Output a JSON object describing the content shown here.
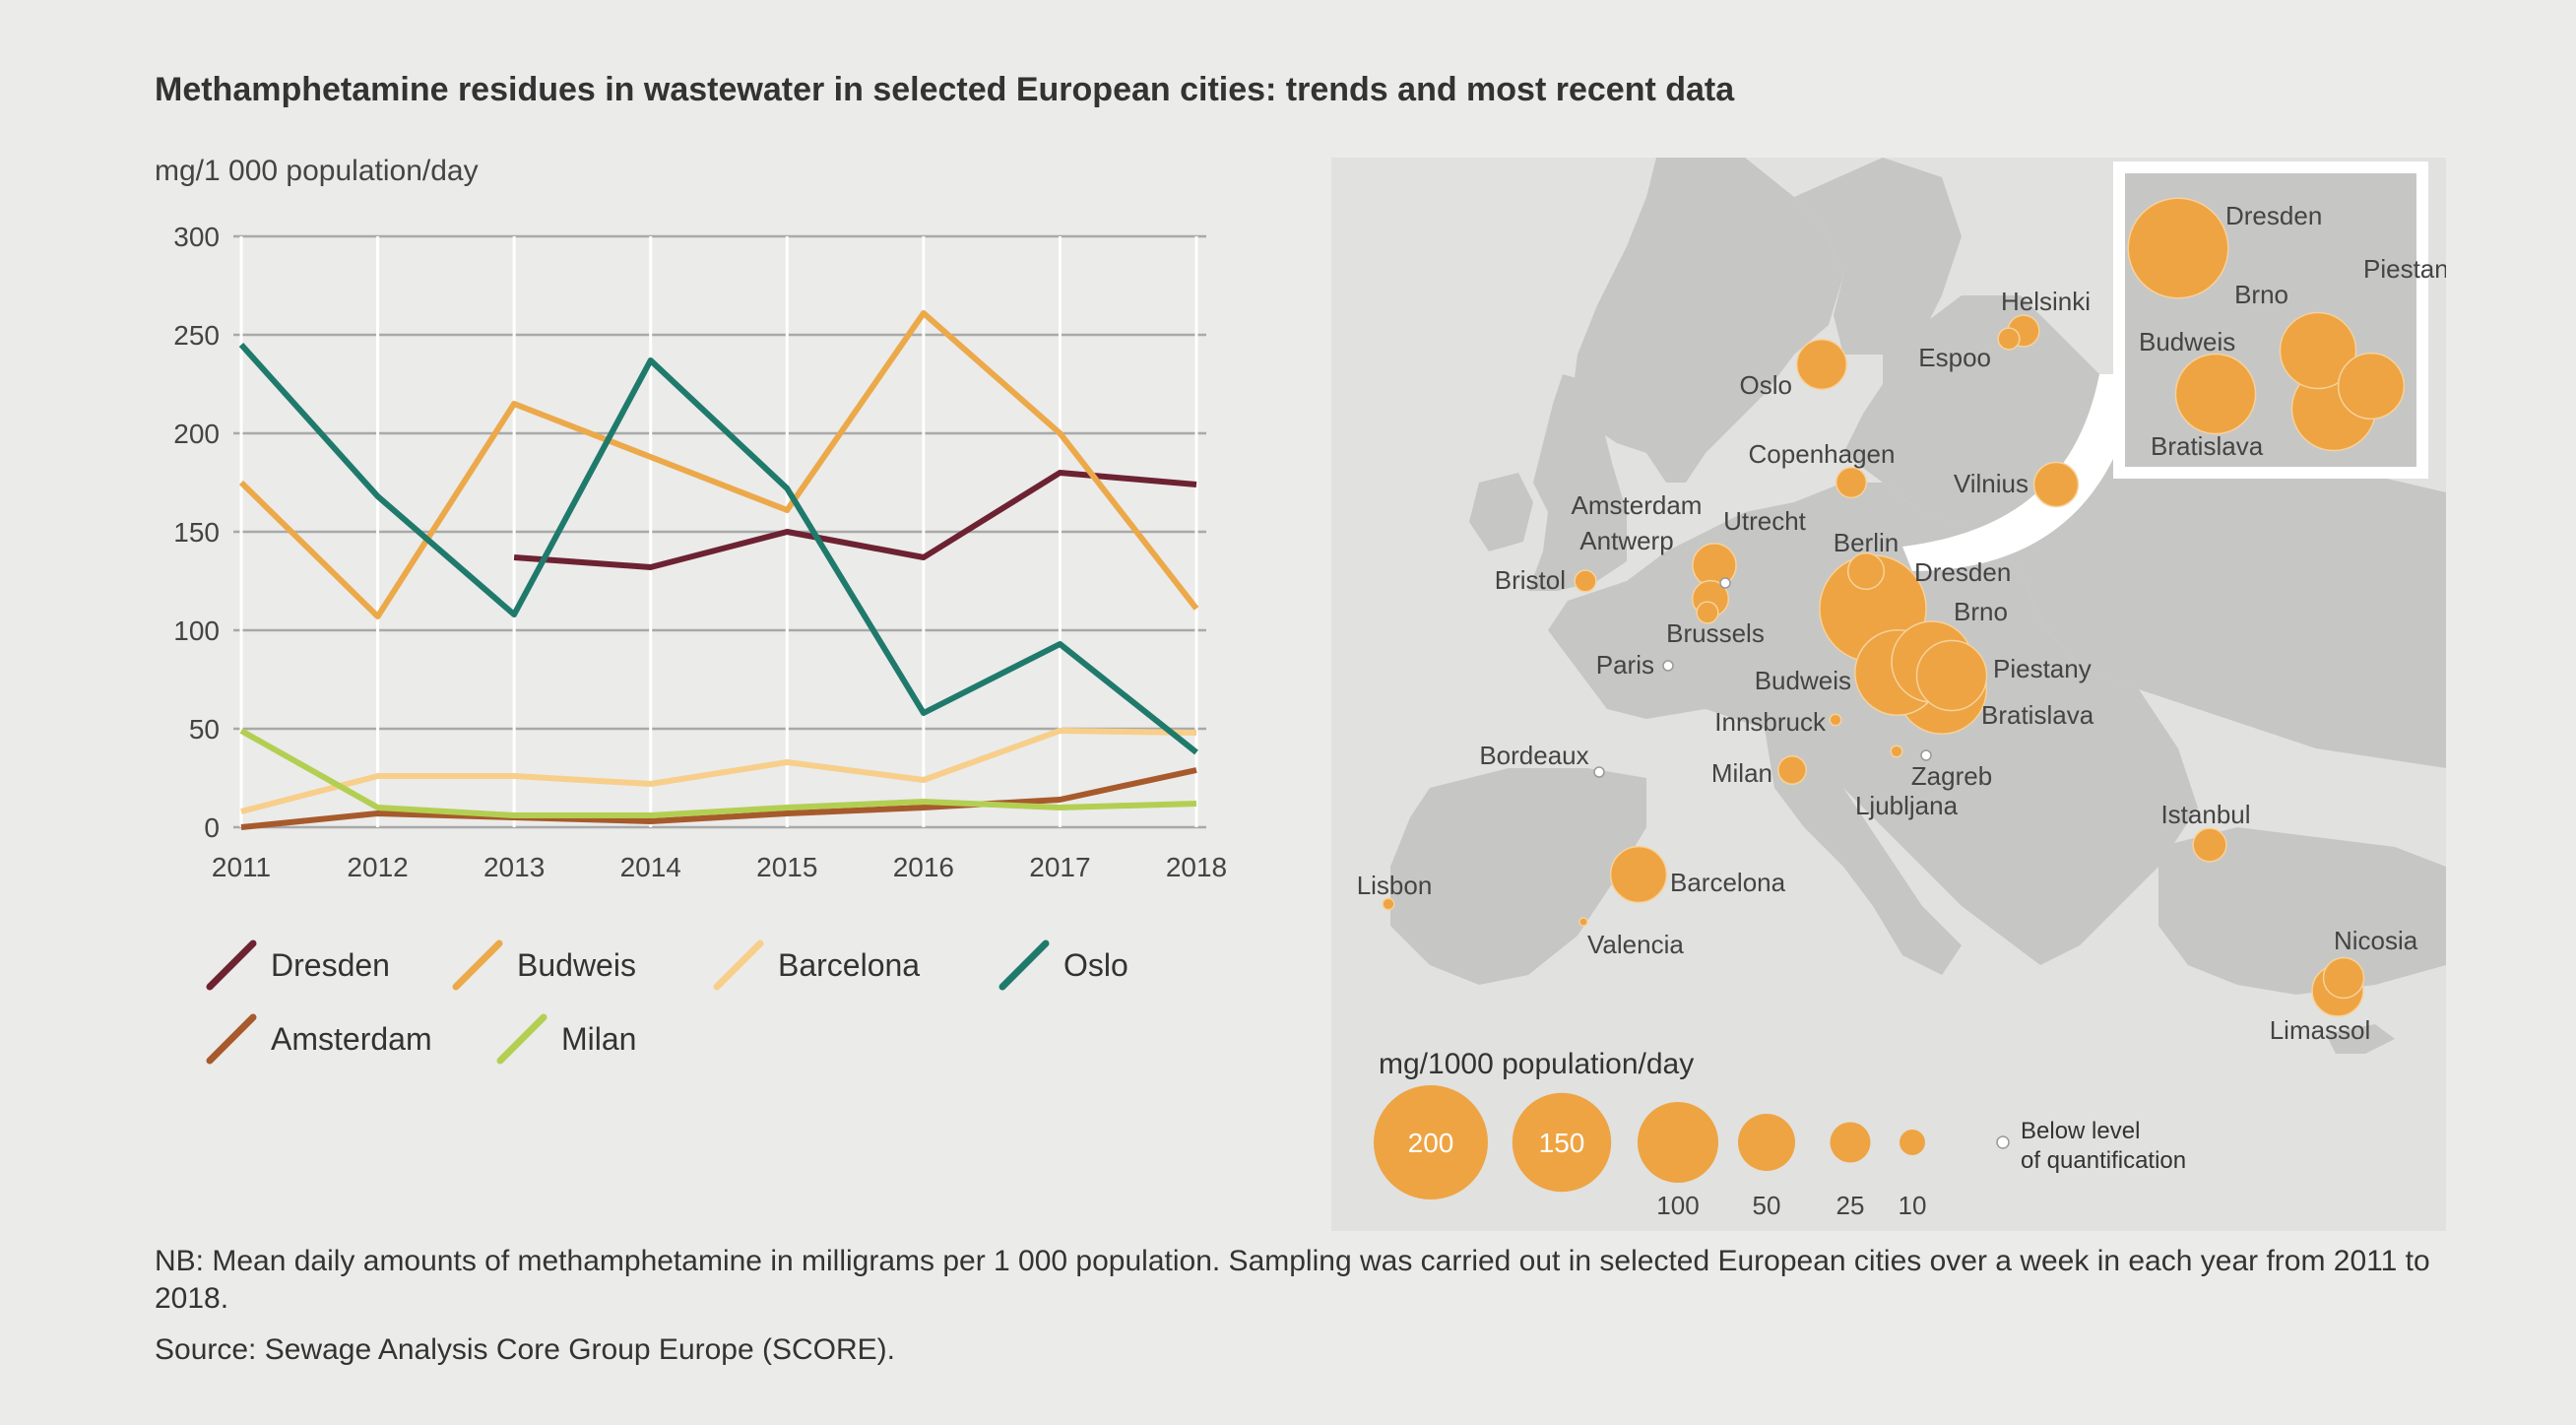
{
  "title": "Methamphetamine residues in wastewater in selected European cities: trends and most recent data",
  "unit_label": "mg/1 000 population/day",
  "colors": {
    "Dresden": "#6d2232",
    "Budweis": "#eca94a",
    "Barcelona": "#f7cf8b",
    "Oslo": "#1f7a6c",
    "Amsterdam": "#a75a2c",
    "Milan": "#b3cf52",
    "bubble": "#eea443",
    "land": "#c6c6c5",
    "sea": "#e1e1df"
  },
  "chart_data": [
    {
      "type": "line",
      "title": "",
      "xlabel": "",
      "ylabel": "mg/1 000 population/day",
      "x": [
        "2011",
        "2012",
        "2013",
        "2014",
        "2015",
        "2016",
        "2017",
        "2018"
      ],
      "ylim": [
        0,
        300
      ],
      "yticks": [
        0,
        50,
        100,
        150,
        200,
        250,
        300
      ],
      "grid": true,
      "legend_position": "bottom",
      "series": [
        {
          "name": "Dresden",
          "values": [
            null,
            null,
            137,
            132,
            150,
            137,
            180,
            174
          ]
        },
        {
          "name": "Budweis",
          "values": [
            175,
            107,
            215,
            188,
            161,
            261,
            200,
            111
          ]
        },
        {
          "name": "Barcelona",
          "values": [
            8,
            26,
            26,
            22,
            33,
            24,
            49,
            48
          ]
        },
        {
          "name": "Oslo",
          "values": [
            245,
            168,
            108,
            237,
            172,
            58,
            93,
            38
          ]
        },
        {
          "name": "Amsterdam",
          "values": [
            0,
            7,
            5,
            3,
            7,
            10,
            14,
            29
          ]
        },
        {
          "name": "Milan",
          "values": [
            49,
            10,
            6,
            6,
            10,
            13,
            10,
            12
          ]
        }
      ]
    },
    {
      "type": "bubble-map",
      "title": "",
      "size_legend_label": "mg/1000 population/day",
      "size_legend": [
        {
          "value": 200,
          "label": "200",
          "inside": true
        },
        {
          "value": 150,
          "label": "150",
          "inside": true
        },
        {
          "value": 100,
          "label": "100",
          "inside": false
        },
        {
          "value": 50,
          "label": "50",
          "inside": false
        },
        {
          "value": 25,
          "label": "25",
          "inside": false
        },
        {
          "value": 10,
          "label": "10",
          "inside": false
        }
      ],
      "below_loq_label_1": "Below level",
      "below_loq_label_2": "of quantification",
      "cities": [
        {
          "name": "Dresden",
          "value": 174
        },
        {
          "name": "Brno",
          "value": 100
        },
        {
          "name": "Piestany",
          "value": 75
        },
        {
          "name": "Budweis",
          "value": 111
        },
        {
          "name": "Bratislava",
          "value": 122
        },
        {
          "name": "Oslo",
          "value": 38
        },
        {
          "name": "Helsinki",
          "value": 15
        },
        {
          "name": "Espoo",
          "value": 7
        },
        {
          "name": "Copenhagen",
          "value": 14
        },
        {
          "name": "Vilnius",
          "value": 30
        },
        {
          "name": "Amsterdam",
          "value": 29
        },
        {
          "name": "Utrecht",
          "value": 0
        },
        {
          "name": "Berlin",
          "value": 20
        },
        {
          "name": "Antwerp",
          "value": 20
        },
        {
          "name": "Bristol",
          "value": 7
        },
        {
          "name": "Brussels",
          "value": 7
        },
        {
          "name": "Paris",
          "value": 0
        },
        {
          "name": "Innsbruck",
          "value": 2
        },
        {
          "name": "Milan",
          "value": 12
        },
        {
          "name": "Ljubljana",
          "value": 2
        },
        {
          "name": "Zagreb",
          "value": 0
        },
        {
          "name": "Bordeaux",
          "value": 0
        },
        {
          "name": "Istanbul",
          "value": 17
        },
        {
          "name": "Lisbon",
          "value": 2
        },
        {
          "name": "Barcelona",
          "value": 48
        },
        {
          "name": "Valencia",
          "value": 1
        },
        {
          "name": "Nicosia",
          "value": 25
        },
        {
          "name": "Limassol",
          "value": 40
        }
      ],
      "inset_cities": [
        {
          "name": "Dresden",
          "value": 174
        },
        {
          "name": "Piestany",
          "value": 75
        },
        {
          "name": "Brno",
          "value": 100
        },
        {
          "name": "Budweis",
          "value": 111
        },
        {
          "name": "Bratislava",
          "value": 122
        }
      ]
    }
  ],
  "notes": {
    "nb": "NB: Mean daily amounts of methamphetamine in milligrams per 1 000 population. Sampling was carried out in selected European cities over a week in each year from 2011 to 2018.",
    "source": "Source: Sewage Analysis Core Group Europe (SCORE)."
  }
}
